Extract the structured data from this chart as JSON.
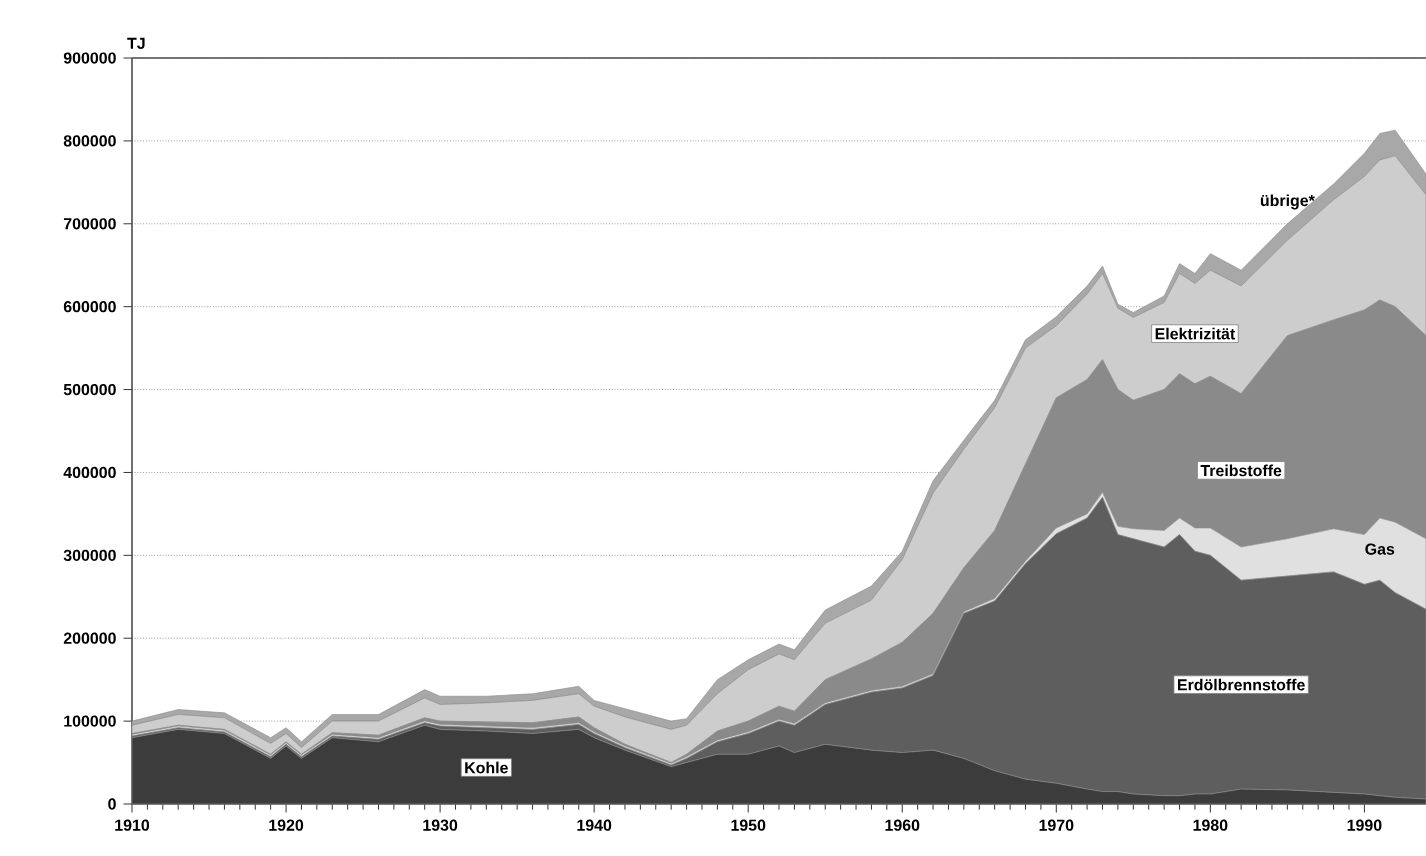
{
  "chart_data": {
    "type": "area",
    "stacked": true,
    "ylabel": "TJ",
    "grid": "y",
    "x": [
      1910,
      1913,
      1916,
      1919,
      1920,
      1921,
      1923,
      1926,
      1929,
      1930,
      1933,
      1936,
      1939,
      1940,
      1942,
      1945,
      1946,
      1948,
      1950,
      1952,
      1953,
      1955,
      1958,
      1960,
      1962,
      1964,
      1966,
      1968,
      1970,
      1972,
      1973,
      1974,
      1975,
      1977,
      1978,
      1979,
      1980,
      1982,
      1985,
      1988,
      1990,
      1991,
      1992,
      1994
    ],
    "xlim": [
      1910,
      1994
    ],
    "xticks": [
      1910,
      1920,
      1930,
      1940,
      1950,
      1960,
      1970,
      1980,
      1990
    ],
    "ylim": [
      0,
      900000
    ],
    "yticks": [
      0,
      100000,
      200000,
      300000,
      400000,
      500000,
      600000,
      700000,
      800000,
      900000
    ],
    "series": [
      {
        "name": "Kohle",
        "color": "#3c3c3c",
        "values": [
          80000,
          90000,
          85000,
          55000,
          70000,
          55000,
          80000,
          75000,
          95000,
          90000,
          88000,
          85000,
          90000,
          80000,
          65000,
          45000,
          50000,
          60000,
          60000,
          70000,
          62000,
          72000,
          65000,
          62000,
          65000,
          55000,
          40000,
          30000,
          25000,
          18000,
          15000,
          15000,
          12000,
          10000,
          10000,
          12000,
          12000,
          18000,
          17000,
          14000,
          12000,
          10000,
          8000,
          6000
        ]
      },
      {
        "name": "Erdölbrennstoffe",
        "color": "#5e5e5e",
        "values": [
          2000,
          2000,
          2000,
          2000,
          2000,
          2000,
          2000,
          3000,
          3000,
          4000,
          4000,
          5000,
          6000,
          5000,
          3000,
          2000,
          5000,
          15000,
          25000,
          30000,
          33000,
          48000,
          70000,
          78000,
          90000,
          175000,
          205000,
          260000,
          301000,
          327000,
          355000,
          310000,
          308000,
          300000,
          315000,
          293000,
          288000,
          252000,
          258000,
          266000,
          253000,
          260000,
          247000,
          229000
        ]
      },
      {
        "name": "Gas",
        "color": "#e0e0e0",
        "values": [
          2000,
          2000,
          2000,
          2000,
          2000,
          2000,
          2000,
          2000,
          2000,
          2000,
          2000,
          2000,
          2000,
          2000,
          2000,
          2000,
          2000,
          2000,
          2000,
          2000,
          2000,
          2000,
          2000,
          2000,
          2000,
          2000,
          3000,
          3000,
          7000,
          5000,
          6000,
          10000,
          12000,
          20000,
          20000,
          28000,
          33000,
          40000,
          45000,
          52000,
          60000,
          75000,
          85000,
          85000
        ]
      },
      {
        "name": "Treibstoffe",
        "color": "#8a8a8a",
        "values": [
          1000,
          1000,
          1000,
          1000,
          1000,
          1000,
          2000,
          3000,
          4000,
          4000,
          5000,
          6000,
          7000,
          5000,
          2000,
          1000,
          3000,
          11000,
          13000,
          16000,
          15000,
          28000,
          38000,
          53000,
          73000,
          53000,
          82000,
          117000,
          157000,
          162000,
          160000,
          165000,
          155000,
          170000,
          174000,
          174000,
          183000,
          185000,
          245000,
          252000,
          271000,
          263000,
          260000,
          245000
        ]
      },
      {
        "name": "Elektrizität",
        "color": "#cdcdcd",
        "values": [
          10000,
          13000,
          14000,
          13000,
          10000,
          8000,
          14000,
          17000,
          24000,
          20000,
          23000,
          27000,
          28000,
          26000,
          33000,
          40000,
          35000,
          45000,
          62000,
          63000,
          62000,
          68000,
          71000,
          100000,
          145000,
          143000,
          148000,
          140000,
          87000,
          103000,
          104000,
          98000,
          100000,
          105000,
          121000,
          121000,
          128000,
          130000,
          115000,
          145000,
          161000,
          169000,
          182000,
          170000
        ]
      },
      {
        "name": "übrige*",
        "color": "#a8a8a8",
        "values": [
          5000,
          6000,
          6000,
          7000,
          7000,
          7000,
          8000,
          8000,
          10000,
          10000,
          8000,
          8000,
          9000,
          7000,
          10000,
          10000,
          8000,
          17000,
          12000,
          12000,
          12000,
          16000,
          17000,
          10000,
          15000,
          11000,
          9000,
          10000,
          11000,
          10000,
          9000,
          5000,
          6000,
          8000,
          12000,
          12000,
          20000,
          19000,
          20000,
          19000,
          28000,
          32000,
          31000,
          25000
        ]
      }
    ]
  }
}
